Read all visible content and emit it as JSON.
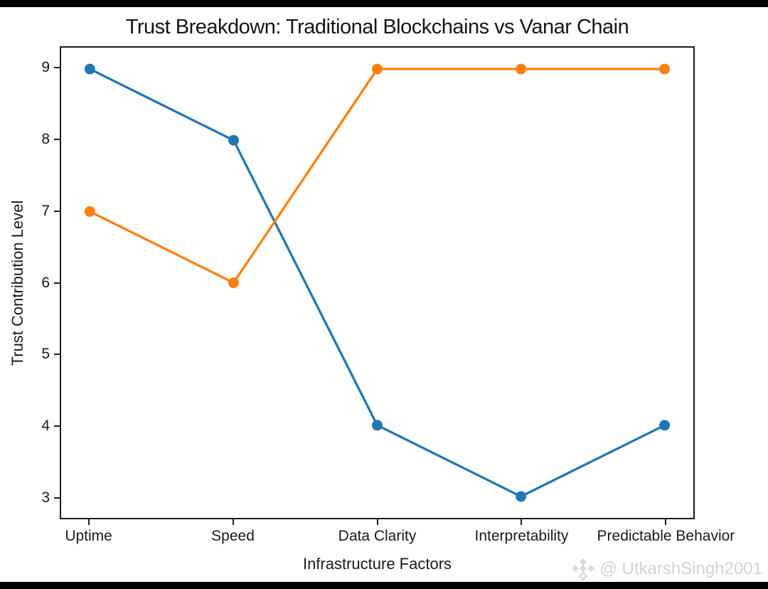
{
  "chart_data": {
    "type": "line",
    "title": "Trust Breakdown: Traditional Blockchains vs Vanar Chain",
    "xlabel": "Infrastructure Factors",
    "ylabel": "Trust Contribution Level",
    "categories": [
      "Uptime",
      "Speed",
      "Data Clarity",
      "Interpretability",
      "Predictable Behavior"
    ],
    "series": [
      {
        "name": "Traditional Blockchains",
        "color": "#1f77b4",
        "values": [
          9,
          8,
          4,
          3,
          4
        ]
      },
      {
        "name": "Vanar Chain",
        "color": "#ff7f0e",
        "values": [
          7,
          6,
          9,
          9,
          9
        ]
      }
    ],
    "yticks": [
      3,
      4,
      5,
      6,
      7,
      8,
      9
    ],
    "ylim": [
      2.7,
      9.3
    ],
    "xlim": [
      -0.2,
      4.2
    ],
    "grid": false,
    "legend": "none",
    "marker": "circle",
    "marker_radius": 7.5,
    "line_width": 3.3
  },
  "watermark": {
    "text": "@ UtkarshSingh2001",
    "icon_color": "#d8d8d8"
  }
}
